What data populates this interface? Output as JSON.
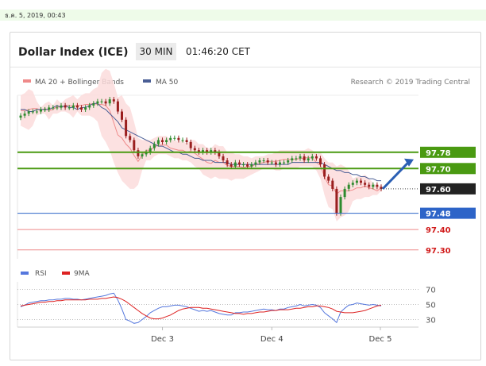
{
  "timestamp": "ธ.ค. 5, 2019, 00:43",
  "header": {
    "title": "Dollar Index (ICE)",
    "interval": "30 MIN",
    "time": "01:46:20 CET"
  },
  "legend": {
    "bollinger": "MA 20 + Bollinger Bands",
    "ma50": "MA 50",
    "credit": "Research © 2019 Trading Central",
    "rsi": "RSI",
    "rsi_ma": "9MA"
  },
  "colors": {
    "candle_up": "#2e8b2e",
    "candle_down": "#9a1f1f",
    "bollinger_fill": "#fbdcdc",
    "ma20": "#ef8a8a",
    "ma50": "#4a5e95",
    "resistance": "#4a9a12",
    "pivot": "#2d64c8",
    "support": "#ee8a8a",
    "support_text": "#d11a1a",
    "last_price": "#222222",
    "rsi": "#5577dd",
    "rsi_ma": "#dd2222"
  },
  "chart_data": {
    "type": "candlestick",
    "x_ticks": [
      "Dec 3",
      "Dec 4",
      "Dec 5"
    ],
    "y_range": [
      97.26,
      98.06
    ],
    "levels": [
      {
        "label": "97.78",
        "value": 97.78,
        "kind": "resistance"
      },
      {
        "label": "97.70",
        "value": 97.7,
        "kind": "resistance"
      },
      {
        "label": "97.60",
        "value": 97.6,
        "kind": "last"
      },
      {
        "label": "97.48",
        "value": 97.48,
        "kind": "pivot"
      },
      {
        "label": "97.40",
        "value": 97.4,
        "kind": "support"
      },
      {
        "label": "97.30",
        "value": 97.3,
        "kind": "support"
      }
    ],
    "close": [
      97.96,
      97.97,
      97.98,
      97.98,
      97.98,
      97.99,
      97.99,
      98.0,
      98.0,
      98.0,
      98.01,
      98.0,
      98.0,
      98.01,
      98.0,
      97.99,
      98.0,
      98.01,
      98.02,
      98.03,
      98.03,
      98.02,
      98.04,
      98.03,
      97.98,
      97.94,
      97.86,
      97.84,
      97.79,
      97.76,
      97.77,
      97.78,
      97.8,
      97.82,
      97.84,
      97.83,
      97.84,
      97.85,
      97.85,
      97.84,
      97.84,
      97.83,
      97.8,
      97.79,
      97.78,
      97.79,
      97.78,
      97.79,
      97.78,
      97.76,
      97.74,
      97.72,
      97.71,
      97.73,
      97.72,
      97.72,
      97.71,
      97.72,
      97.73,
      97.74,
      97.74,
      97.73,
      97.73,
      97.72,
      97.73,
      97.73,
      97.74,
      97.75,
      97.75,
      97.76,
      97.74,
      97.75,
      97.76,
      97.75,
      97.72,
      97.66,
      97.64,
      97.6,
      97.48,
      97.56,
      97.6,
      97.62,
      97.63,
      97.64,
      97.63,
      97.62,
      97.61,
      97.62,
      97.61,
      97.6
    ],
    "upper_band": [
      98.06,
      98.07,
      98.09,
      98.08,
      98.03,
      98.0,
      98.02,
      98.03,
      98.01,
      98.04,
      98.02,
      98.04,
      98.05,
      98.06,
      98.04,
      98.06,
      98.07,
      98.07,
      98.09,
      98.1,
      98.17,
      98.19,
      98.18,
      98.12,
      98.05,
      98.06,
      98.02,
      98.0,
      97.93,
      97.85,
      97.84,
      97.84,
      97.84,
      97.85,
      97.86,
      97.86,
      97.86,
      97.84,
      97.84,
      97.83,
      97.84,
      97.82,
      97.84,
      97.84,
      97.82,
      97.82,
      97.8,
      97.8,
      97.82,
      97.81,
      97.81,
      97.78,
      97.78,
      97.77,
      97.77,
      97.76,
      97.76,
      97.75,
      97.76,
      97.76,
      97.76,
      97.77,
      97.77,
      97.78,
      97.79,
      97.79,
      97.79,
      97.79,
      97.79,
      97.79,
      97.79,
      97.8,
      97.79,
      97.77,
      97.78,
      97.75,
      97.73,
      97.73,
      97.71,
      97.72,
      97.71,
      97.69,
      97.65,
      97.66,
      97.66,
      97.67,
      97.65,
      97.63,
      97.61,
      97.62
    ],
    "lower_band": [
      97.91,
      97.9,
      97.89,
      97.91,
      97.96,
      97.97,
      97.97,
      97.94,
      97.97,
      97.97,
      97.98,
      97.98,
      97.97,
      97.95,
      97.98,
      97.96,
      97.96,
      97.96,
      97.95,
      97.93,
      97.86,
      97.83,
      97.79,
      97.73,
      97.68,
      97.64,
      97.62,
      97.6,
      97.6,
      97.62,
      97.69,
      97.74,
      97.74,
      97.76,
      97.77,
      97.77,
      97.77,
      97.76,
      97.75,
      97.75,
      97.74,
      97.74,
      97.73,
      97.71,
      97.7,
      97.67,
      97.66,
      97.65,
      97.66,
      97.65,
      97.65,
      97.65,
      97.64,
      97.65,
      97.65,
      97.65,
      97.66,
      97.67,
      97.68,
      97.69,
      97.7,
      97.7,
      97.7,
      97.69,
      97.69,
      97.7,
      97.7,
      97.7,
      97.7,
      97.71,
      97.71,
      97.71,
      97.71,
      97.69,
      97.65,
      97.57,
      97.51,
      97.5,
      97.44,
      97.46,
      97.47,
      97.49,
      97.54,
      97.55,
      97.55,
      97.56,
      97.56,
      97.57,
      97.57,
      97.59
    ],
    "ma50": [
      97.99,
      97.99,
      97.98,
      97.98,
      97.99,
      97.99,
      97.99,
      97.99,
      98.0,
      98.01,
      98.0,
      98.01,
      98.0,
      98.0,
      97.99,
      98.0,
      98.0,
      98.01,
      98.02,
      98.02,
      98.0,
      97.99,
      97.97,
      97.95,
      97.93,
      97.9,
      97.89,
      97.88,
      97.87,
      97.86,
      97.85,
      97.84,
      97.83,
      97.82,
      97.81,
      97.81,
      97.8,
      97.79,
      97.78,
      97.78,
      97.77,
      97.77,
      97.76,
      97.75,
      97.75,
      97.74,
      97.74,
      97.74,
      97.73,
      97.73,
      97.73,
      97.73,
      97.72,
      97.72,
      97.72,
      97.72,
      97.72,
      97.72,
      97.72,
      97.72,
      97.72,
      97.72,
      97.72,
      97.72,
      97.72,
      97.72,
      97.72,
      97.73,
      97.73,
      97.73,
      97.73,
      97.73,
      97.73,
      97.73,
      97.73,
      97.72,
      97.71,
      97.7,
      97.69,
      97.69,
      97.68,
      97.68,
      97.67,
      97.67,
      97.66,
      97.66,
      97.65,
      97.65,
      97.64,
      97.64
    ],
    "rsi": {
      "y_ticks": [
        70,
        50,
        30
      ],
      "range": [
        20,
        80
      ],
      "values": [
        47,
        49,
        52,
        53,
        54,
        55,
        55,
        56,
        56,
        57,
        57,
        58,
        58,
        57,
        57,
        56,
        57,
        58,
        59,
        60,
        61,
        62,
        64,
        65,
        56,
        44,
        30,
        28,
        25,
        26,
        30,
        34,
        39,
        42,
        45,
        47,
        47,
        48,
        49,
        49,
        48,
        47,
        45,
        43,
        41,
        42,
        41,
        42,
        40,
        38,
        37,
        36,
        36,
        39,
        39,
        40,
        40,
        41,
        42,
        43,
        44,
        43,
        43,
        42,
        44,
        44,
        46,
        47,
        48,
        50,
        48,
        49,
        50,
        49,
        46,
        39,
        35,
        31,
        26,
        40,
        45,
        49,
        50,
        52,
        51,
        50,
        49,
        50,
        49,
        48
      ],
      "ma": [
        48,
        49,
        50,
        51,
        52,
        53,
        53,
        54,
        54,
        55,
        55,
        56,
        56,
        56,
        56,
        56,
        56,
        57,
        57,
        57,
        58,
        58,
        59,
        60,
        59,
        57,
        54,
        50,
        46,
        42,
        38,
        35,
        32,
        31,
        31,
        32,
        34,
        36,
        39,
        42,
        44,
        45,
        46,
        46,
        46,
        45,
        45,
        44,
        43,
        42,
        41,
        40,
        39,
        38,
        38,
        37,
        38,
        38,
        39,
        40,
        40,
        41,
        42,
        42,
        43,
        43,
        43,
        44,
        45,
        45,
        46,
        47,
        47,
        48,
        48,
        47,
        46,
        44,
        41,
        40,
        39,
        39,
        39,
        40,
        41,
        42,
        44,
        46,
        48,
        49
      ]
    }
  }
}
